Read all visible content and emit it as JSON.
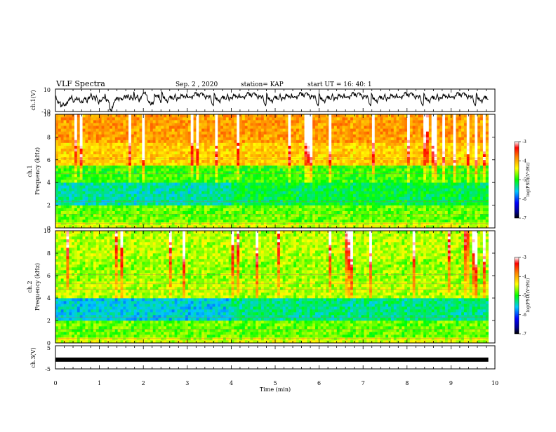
{
  "header": {
    "title": "VLF Spectra",
    "date": "Sep. 2 , 2020",
    "station": "station= KAP",
    "start": "start UT = 16: 40: 1"
  },
  "chart_data": [
    {
      "id": "ch1-waveform",
      "type": "line",
      "ylabel": "ch.1(V)",
      "ylim": [
        -10,
        10
      ],
      "y_ticks": [
        "10",
        "-10"
      ],
      "xlim": [
        0,
        10
      ],
      "data_end_min": 9.85,
      "baseline_v": 1.2,
      "color": "#000000"
    },
    {
      "id": "ch1-spectrogram",
      "type": "heatmap",
      "ylabel_top": "ch.1",
      "ylabel": "Frequency (kHz)",
      "ylim": [
        0,
        10
      ],
      "y_ticks": [
        "0",
        "2",
        "4",
        "6",
        "8",
        "10"
      ],
      "xlim": [
        0,
        10
      ],
      "data_end_min": 9.85,
      "colorbar": {
        "label": "log(PSD)(V²/Hz)",
        "range": [
          -7,
          -3
        ],
        "ticks": [
          "-3",
          "-4",
          "-5",
          "-6",
          "-7"
        ]
      }
    },
    {
      "id": "ch2-spectrogram",
      "type": "heatmap",
      "ylabel_top": "ch.2",
      "ylabel": "Frequency (kHz)",
      "ylim": [
        0,
        10
      ],
      "y_ticks": [
        "0",
        "2",
        "4",
        "6",
        "8",
        "10"
      ],
      "xlim": [
        0,
        10
      ],
      "data_end_min": 9.85,
      "colorbar": {
        "label": "log(PSD)(V²/Hz)",
        "range": [
          -7,
          -3
        ],
        "ticks": [
          "-3",
          "-4",
          "-5",
          "-6",
          "-7"
        ]
      }
    },
    {
      "id": "ch3-waveform",
      "type": "line",
      "ylabel": "ch.3(V)",
      "ylim": [
        -5,
        5
      ],
      "y_ticks": [
        "5",
        "-5"
      ],
      "xlim": [
        0,
        10
      ],
      "data_end_min": 9.85,
      "constant_v": -1.0,
      "color": "#000000"
    }
  ],
  "x_axis": {
    "label": "Time (min)",
    "ticks": [
      "0",
      "1",
      "2",
      "3",
      "4",
      "5",
      "6",
      "7",
      "8",
      "9",
      "10"
    ]
  }
}
